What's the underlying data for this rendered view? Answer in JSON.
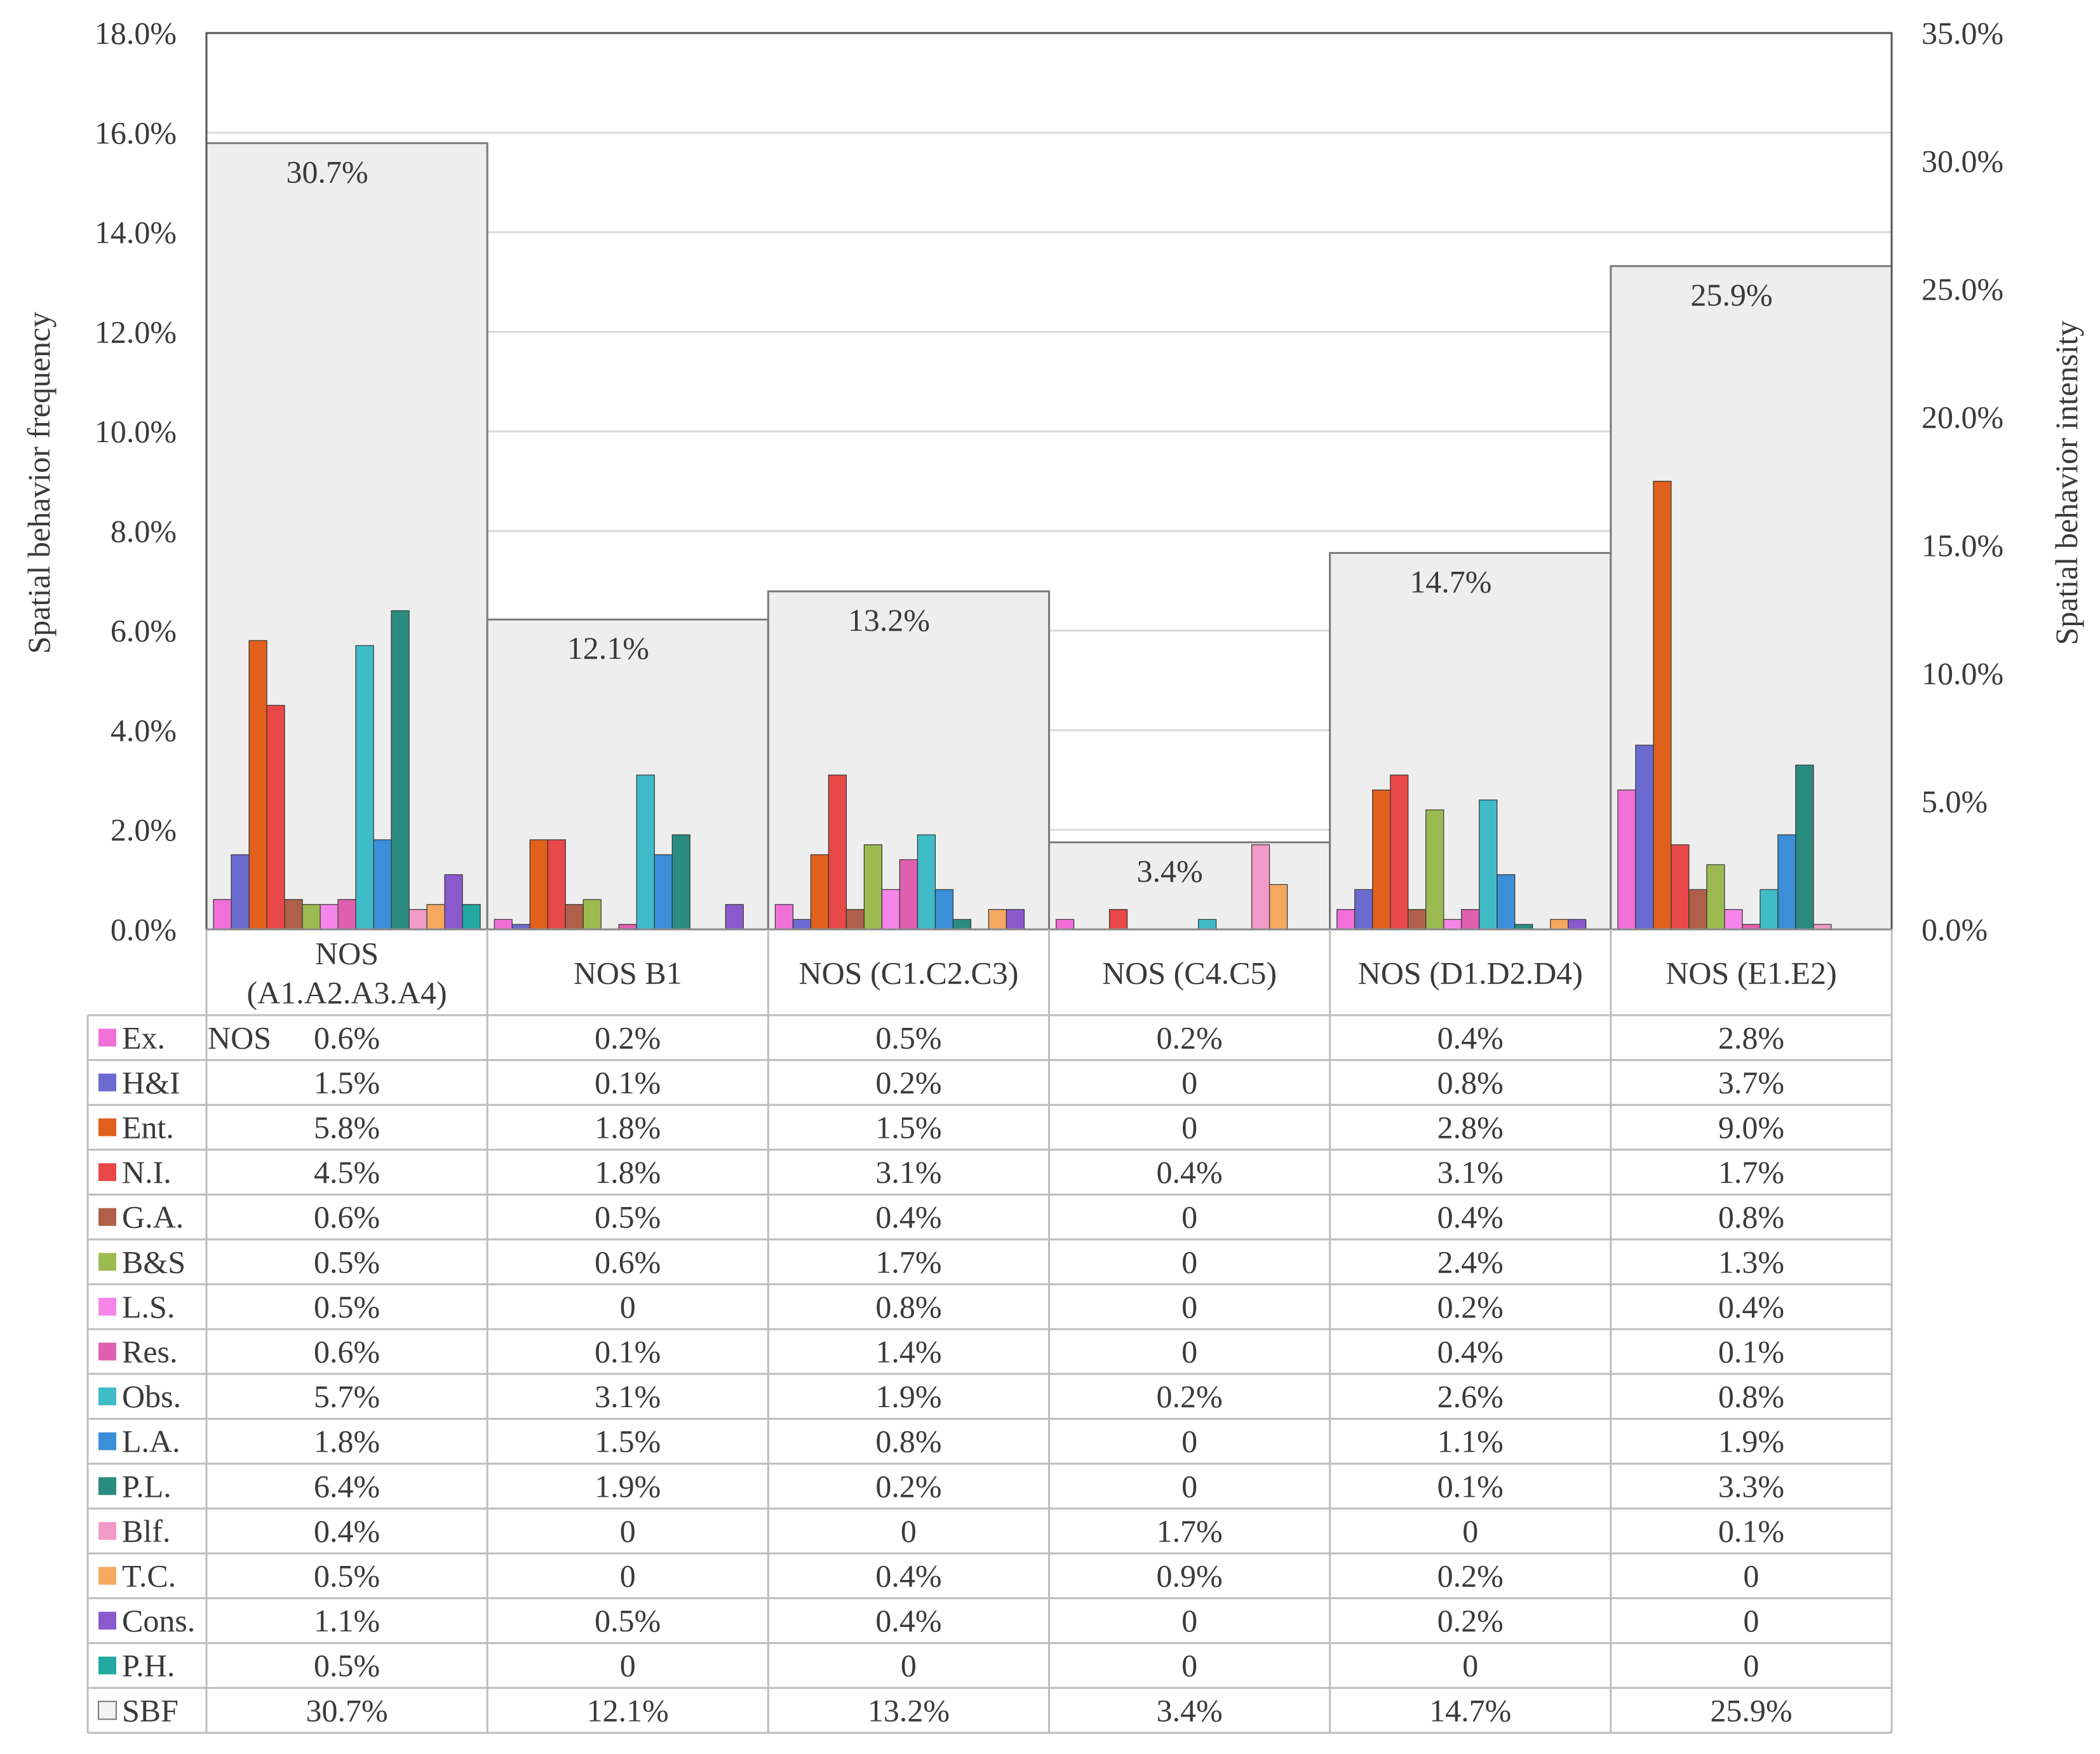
{
  "chart_data": {
    "type": "bar",
    "ylabel_left": "Spatial behavior frequency",
    "ylabel_right": "Spatial behavior intensity",
    "ylim_left": [
      0,
      18
    ],
    "ylim_right": [
      0,
      35
    ],
    "left_ticks": [
      "0.0%",
      "2.0%",
      "4.0%",
      "6.0%",
      "8.0%",
      "10.0%",
      "12.0%",
      "14.0%",
      "16.0%",
      "18.0%"
    ],
    "right_ticks": [
      "0.0%",
      "5.0%",
      "10.0%",
      "15.0%",
      "20.0%",
      "25.0%",
      "30.0%",
      "35.0%"
    ],
    "grid": true,
    "legend_placement": "data table, left column",
    "categories": [
      {
        "label_lines": [
          "NOS",
          "(A1.A2.A3.A4)"
        ]
      },
      {
        "label_lines": [
          "NOS B1"
        ]
      },
      {
        "label_lines": [
          "NOS (C1.C2.C3)"
        ]
      },
      {
        "label_lines": [
          "NOS (C4.C5)"
        ]
      },
      {
        "label_lines": [
          "NOS (D1.D2.D4)"
        ]
      },
      {
        "label_lines": [
          "NOS (E1.E2)"
        ]
      }
    ],
    "table_stray_label": "NOS",
    "series": [
      {
        "name": "Ex.",
        "color": "#f070d8",
        "values": [
          0.6,
          0.2,
          0.5,
          0.2,
          0.4,
          2.8
        ],
        "labels": [
          "0.6%",
          "0.2%",
          "0.5%",
          "0.2%",
          "0.4%",
          "2.8%"
        ]
      },
      {
        "name": "H&I",
        "color": "#6b6bcf",
        "values": [
          1.5,
          0.1,
          0.2,
          0,
          0.8,
          3.7
        ],
        "labels": [
          "1.5%",
          "0.1%",
          "0.2%",
          "0",
          "0.8%",
          "3.7%"
        ]
      },
      {
        "name": "Ent.",
        "color": "#e0601c",
        "values": [
          5.8,
          1.8,
          1.5,
          0,
          2.8,
          9.0
        ],
        "labels": [
          "5.8%",
          "1.8%",
          "1.5%",
          "0",
          "2.8%",
          "9.0%"
        ]
      },
      {
        "name": "N.I.",
        "color": "#e84848",
        "values": [
          4.5,
          1.8,
          3.1,
          0.4,
          3.1,
          1.7
        ],
        "labels": [
          "4.5%",
          "1.8%",
          "3.1%",
          "0.4%",
          "3.1%",
          "1.7%"
        ]
      },
      {
        "name": "G.A.",
        "color": "#b0604a",
        "values": [
          0.6,
          0.5,
          0.4,
          0,
          0.4,
          0.8
        ],
        "labels": [
          "0.6%",
          "0.5%",
          "0.4%",
          "0",
          "0.4%",
          "0.8%"
        ]
      },
      {
        "name": "B&S",
        "color": "#9bbb50",
        "values": [
          0.5,
          0.6,
          1.7,
          0,
          2.4,
          1.3
        ],
        "labels": [
          "0.5%",
          "0.6%",
          "1.7%",
          "0",
          "2.4%",
          "1.3%"
        ]
      },
      {
        "name": "L.S.",
        "color": "#f585e8",
        "values": [
          0.5,
          0,
          0.8,
          0,
          0.2,
          0.4
        ],
        "labels": [
          "0.5%",
          "0",
          "0.8%",
          "0",
          "0.2%",
          "0.4%"
        ]
      },
      {
        "name": "Res.",
        "color": "#e060b0",
        "values": [
          0.6,
          0.1,
          1.4,
          0,
          0.4,
          0.1
        ],
        "labels": [
          "0.6%",
          "0.1%",
          "1.4%",
          "0",
          "0.4%",
          "0.1%"
        ]
      },
      {
        "name": "Obs.",
        "color": "#40bcc8",
        "values": [
          5.7,
          3.1,
          1.9,
          0.2,
          2.6,
          0.8
        ],
        "labels": [
          "5.7%",
          "3.1%",
          "1.9%",
          "0.2%",
          "2.6%",
          "0.8%"
        ]
      },
      {
        "name": "L.A.",
        "color": "#3a8fd8",
        "values": [
          1.8,
          1.5,
          0.8,
          0,
          1.1,
          1.9
        ],
        "labels": [
          "1.8%",
          "1.5%",
          "0.8%",
          "0",
          "1.1%",
          "1.9%"
        ]
      },
      {
        "name": "P.L.",
        "color": "#2a8c80",
        "values": [
          6.4,
          1.9,
          0.2,
          0,
          0.1,
          3.3
        ],
        "labels": [
          "6.4%",
          "1.9%",
          "0.2%",
          "0",
          "0.1%",
          "3.3%"
        ]
      },
      {
        "name": "Blf.",
        "color": "#f29ac8",
        "values": [
          0.4,
          0,
          0,
          1.7,
          0,
          0.1
        ],
        "labels": [
          "0.4%",
          "0",
          "0",
          "1.7%",
          "0",
          "0.1%"
        ]
      },
      {
        "name": "T.C.",
        "color": "#f5a860",
        "values": [
          0.5,
          0,
          0.4,
          0.9,
          0.2,
          0
        ],
        "labels": [
          "0.5%",
          "0",
          "0.4%",
          "0.9%",
          "0.2%",
          "0"
        ]
      },
      {
        "name": "Cons.",
        "color": "#8a5acc",
        "values": [
          1.1,
          0.5,
          0.4,
          0,
          0.2,
          0
        ],
        "labels": [
          "1.1%",
          "0.5%",
          "0.4%",
          "0",
          "0.2%",
          "0"
        ]
      },
      {
        "name": "P.H.",
        "color": "#22a8a0",
        "values": [
          0.5,
          0,
          0,
          0,
          0,
          0
        ],
        "labels": [
          "0.5%",
          "0",
          "0",
          "0",
          "0",
          "0"
        ]
      }
    ],
    "sbf": {
      "name": "SBF",
      "axis": "right",
      "color": "#eeeeee",
      "values": [
        30.7,
        12.1,
        13.2,
        3.4,
        14.7,
        25.9
      ],
      "labels": [
        "30.7%",
        "12.1%",
        "13.2%",
        "3.4%",
        "14.7%",
        "25.9%"
      ]
    }
  }
}
